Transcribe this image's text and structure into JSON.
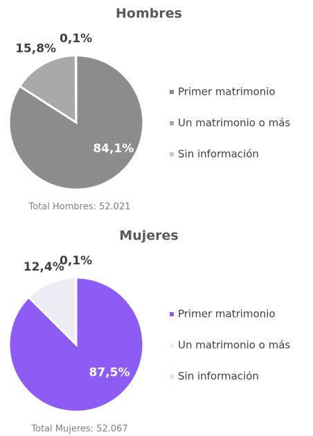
{
  "chart_data": [
    {
      "type": "pie",
      "title": "Hombres",
      "categories": [
        "Primer matrimonio",
        "Un matrimonio o más",
        "Sin información"
      ],
      "values": [
        84.1,
        15.8,
        0.1
      ],
      "value_labels": [
        "84,1%",
        "15,8%",
        "0,1%"
      ],
      "colors": [
        "#8c8c8c",
        "#a9a9a9",
        "#c9c9c9"
      ],
      "footnote": "Total Hombres: 52.021"
    },
    {
      "type": "pie",
      "title": "Mujeres",
      "categories": [
        "Primer matrimonio",
        "Un matrimonio o más",
        "Sin información"
      ],
      "values": [
        87.5,
        12.4,
        0.1
      ],
      "value_labels": [
        "87,5%",
        "12,4%",
        "0,1%"
      ],
      "colors": [
        "#8c5cf5",
        "#ececf4",
        "#f6d8f6"
      ],
      "footnote": "Total Mujeres: 52.067"
    }
  ]
}
